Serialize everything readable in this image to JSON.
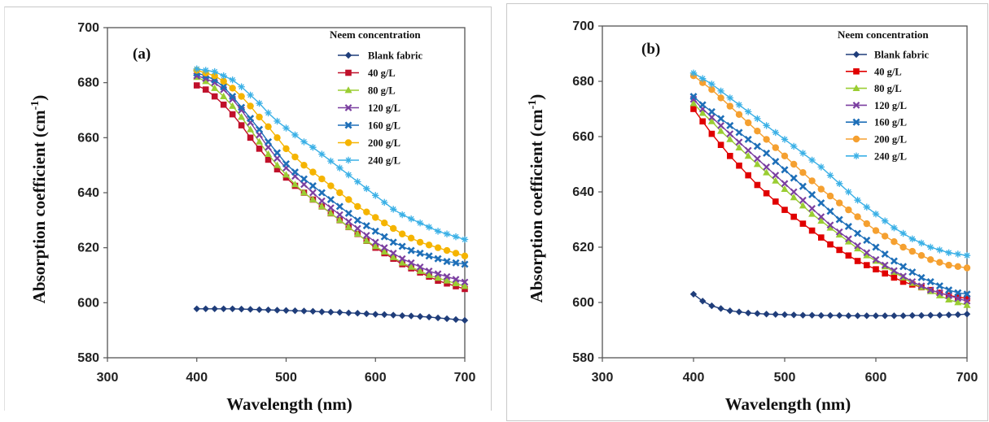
{
  "chart_data": [
    {
      "panel_label": "(a)",
      "type": "line",
      "xlabel": "Wavelength (nm)",
      "ylabel": "Absorption coefficient (cm",
      "ylabel_sup": "-1",
      "ylabel_close": ")",
      "xlim": [
        300,
        700
      ],
      "ylim": [
        580,
        700
      ],
      "xticks": [
        "300",
        "400",
        "500",
        "600",
        "700"
      ],
      "yticks": [
        "580",
        "600",
        "620",
        "640",
        "660",
        "680",
        "700"
      ],
      "grid": false,
      "legend_title": "Neem concentration",
      "legend_position": "top-right",
      "x": [
        400,
        410,
        420,
        430,
        440,
        450,
        460,
        470,
        480,
        490,
        500,
        510,
        520,
        530,
        540,
        550,
        560,
        570,
        580,
        590,
        600,
        610,
        620,
        630,
        640,
        650,
        660,
        670,
        680,
        690,
        700
      ],
      "series": [
        {
          "name": "Blank fabric",
          "color": "#1f3d7a",
          "marker": "diamond",
          "values": [
            597.8,
            597.8,
            597.8,
            597.8,
            597.8,
            597.7,
            597.6,
            597.5,
            597.4,
            597.3,
            597.2,
            597.1,
            597.0,
            596.9,
            596.7,
            596.6,
            596.5,
            596.3,
            596.2,
            596.0,
            595.8,
            595.7,
            595.5,
            595.3,
            595.2,
            595.0,
            594.8,
            594.5,
            594.2,
            593.9,
            593.6
          ]
        },
        {
          "name": "40 g/L",
          "color": "#c0102a",
          "marker": "square",
          "values": [
            679.0,
            677.5,
            675.0,
            672.0,
            668.5,
            664.5,
            660.0,
            656.0,
            652.0,
            648.5,
            645.5,
            642.5,
            640.0,
            637.5,
            635.0,
            632.5,
            630.0,
            627.5,
            625.0,
            622.5,
            620.0,
            618.0,
            616.0,
            614.0,
            612.5,
            611.0,
            609.5,
            608.0,
            607.0,
            606.0,
            605.0
          ]
        },
        {
          "name": "80 g/L",
          "color": "#9acd32",
          "marker": "triangle",
          "values": [
            682.0,
            680.5,
            678.0,
            675.0,
            671.5,
            667.5,
            663.0,
            658.5,
            654.0,
            650.0,
            646.5,
            643.0,
            640.0,
            637.5,
            635.0,
            632.5,
            630.0,
            627.5,
            625.0,
            622.5,
            620.5,
            618.5,
            616.5,
            614.5,
            613.0,
            611.5,
            610.0,
            609.0,
            608.0,
            607.0,
            606.0
          ]
        },
        {
          "name": "120 g/L",
          "color": "#7b3fa0",
          "marker": "x",
          "values": [
            682.5,
            681.5,
            680.0,
            677.5,
            674.0,
            670.0,
            665.5,
            661.0,
            656.5,
            652.5,
            649.0,
            646.0,
            643.0,
            640.0,
            637.0,
            634.5,
            632.0,
            629.5,
            627.0,
            624.5,
            622.0,
            620.0,
            618.0,
            616.0,
            614.5,
            613.0,
            611.5,
            610.5,
            609.5,
            608.5,
            607.5
          ]
        },
        {
          "name": "160 g/L",
          "color": "#1e6fb8",
          "marker": "square-cross",
          "values": [
            683.5,
            682.5,
            681.0,
            678.5,
            675.0,
            671.0,
            667.0,
            663.0,
            658.5,
            654.5,
            650.5,
            647.5,
            645.0,
            642.5,
            640.0,
            637.5,
            635.0,
            632.5,
            630.0,
            628.0,
            626.0,
            624.0,
            622.0,
            620.5,
            619.0,
            618.0,
            617.0,
            616.0,
            615.0,
            614.5,
            614.0
          ]
        },
        {
          "name": "200 g/L",
          "color": "#f5b400",
          "marker": "circle",
          "values": [
            684.5,
            683.5,
            682.5,
            680.5,
            678.0,
            675.0,
            671.5,
            667.5,
            664.0,
            660.0,
            656.0,
            653.0,
            650.0,
            647.5,
            645.0,
            642.5,
            640.0,
            637.5,
            635.0,
            633.0,
            631.0,
            629.0,
            627.0,
            625.0,
            623.5,
            622.0,
            621.0,
            620.0,
            619.0,
            618.0,
            617.0
          ]
        },
        {
          "name": "240 g/L",
          "color": "#3ab0e6",
          "marker": "star",
          "values": [
            685.0,
            684.5,
            684.0,
            682.5,
            681.0,
            678.5,
            675.5,
            672.5,
            669.0,
            666.0,
            663.5,
            661.0,
            658.5,
            656.5,
            654.0,
            651.5,
            649.0,
            646.5,
            644.0,
            641.5,
            639.0,
            636.5,
            634.0,
            632.0,
            630.5,
            629.0,
            627.5,
            626.0,
            625.0,
            624.0,
            623.0
          ]
        }
      ]
    },
    {
      "panel_label": "(b)",
      "type": "line",
      "xlabel": "Wavelength (nm)",
      "ylabel": "Absorption coefficient (cm",
      "ylabel_sup": "-1",
      "ylabel_close": ")",
      "xlim": [
        300,
        700
      ],
      "ylim": [
        580,
        700
      ],
      "xticks": [
        "300",
        "400",
        "500",
        "600",
        "700"
      ],
      "yticks": [
        "580",
        "600",
        "620",
        "640",
        "660",
        "680",
        "700"
      ],
      "grid": false,
      "legend_title": "Neem concentration",
      "legend_position": "top-right",
      "x": [
        400,
        410,
        420,
        430,
        440,
        450,
        460,
        470,
        480,
        490,
        500,
        510,
        520,
        530,
        540,
        550,
        560,
        570,
        580,
        590,
        600,
        610,
        620,
        630,
        640,
        650,
        660,
        670,
        680,
        690,
        700
      ],
      "series": [
        {
          "name": "Blank fabric",
          "color": "#1f3d7a",
          "marker": "diamond",
          "values": [
            603.0,
            600.5,
            598.8,
            597.8,
            597.0,
            596.6,
            596.2,
            596.0,
            595.8,
            595.7,
            595.6,
            595.5,
            595.4,
            595.4,
            595.3,
            595.3,
            595.3,
            595.2,
            595.2,
            595.2,
            595.2,
            595.2,
            595.2,
            595.2,
            595.3,
            595.3,
            595.4,
            595.4,
            595.5,
            595.6,
            595.8
          ]
        },
        {
          "name": "40 g/L",
          "color": "#e00000",
          "marker": "square",
          "values": [
            670.0,
            665.5,
            661.0,
            657.0,
            653.0,
            649.5,
            646.0,
            642.5,
            639.5,
            636.5,
            633.5,
            631.0,
            628.5,
            626.0,
            623.5,
            621.0,
            619.0,
            617.0,
            615.0,
            613.5,
            612.0,
            610.5,
            609.0,
            607.5,
            606.5,
            605.5,
            604.5,
            603.5,
            602.5,
            602.0,
            601.5
          ]
        },
        {
          "name": "80 g/L",
          "color": "#9acd32",
          "marker": "triangle",
          "values": [
            672.0,
            668.5,
            665.5,
            662.0,
            659.0,
            656.0,
            653.0,
            650.0,
            647.0,
            644.0,
            641.0,
            638.0,
            635.0,
            632.0,
            629.5,
            627.0,
            624.5,
            622.0,
            619.5,
            617.0,
            615.0,
            613.0,
            611.0,
            609.0,
            607.0,
            605.5,
            604.0,
            602.5,
            601.0,
            600.0,
            599.0
          ]
        },
        {
          "name": "120 g/L",
          "color": "#7b3fa0",
          "marker": "x",
          "values": [
            673.5,
            670.0,
            667.0,
            664.0,
            661.0,
            658.0,
            655.0,
            652.0,
            649.0,
            646.0,
            643.0,
            640.0,
            637.0,
            634.0,
            631.0,
            628.0,
            625.5,
            623.0,
            620.5,
            618.0,
            615.5,
            613.5,
            611.5,
            609.5,
            607.5,
            606.0,
            604.5,
            603.5,
            602.5,
            601.5,
            600.5
          ]
        },
        {
          "name": "160 g/L",
          "color": "#1e6fb8",
          "marker": "square-cross",
          "values": [
            674.5,
            671.5,
            669.0,
            666.5,
            664.0,
            661.5,
            659.0,
            656.5,
            654.0,
            651.0,
            648.0,
            645.0,
            642.0,
            639.0,
            636.0,
            633.0,
            630.0,
            627.5,
            625.0,
            622.5,
            620.0,
            617.5,
            615.0,
            613.0,
            611.0,
            609.0,
            607.5,
            606.0,
            604.5,
            603.5,
            603.0
          ]
        },
        {
          "name": "200 g/L",
          "color": "#f5a030",
          "marker": "circle",
          "values": [
            682.0,
            679.5,
            677.0,
            674.0,
            671.0,
            668.0,
            665.0,
            662.0,
            659.0,
            656.0,
            653.0,
            650.0,
            647.0,
            644.0,
            641.0,
            638.5,
            636.0,
            633.5,
            631.0,
            628.5,
            626.0,
            624.0,
            622.0,
            620.0,
            618.5,
            617.0,
            615.5,
            614.5,
            613.5,
            613.0,
            612.5
          ]
        },
        {
          "name": "240 g/L",
          "color": "#3ab0e6",
          "marker": "star",
          "values": [
            683.0,
            681.0,
            679.0,
            676.5,
            674.0,
            671.5,
            669.0,
            666.5,
            664.0,
            661.5,
            659.0,
            656.5,
            654.0,
            651.5,
            649.0,
            646.0,
            643.0,
            640.0,
            637.0,
            634.5,
            632.0,
            629.5,
            627.0,
            625.0,
            623.0,
            621.5,
            620.0,
            619.0,
            618.0,
            617.5,
            617.0
          ]
        }
      ]
    }
  ]
}
